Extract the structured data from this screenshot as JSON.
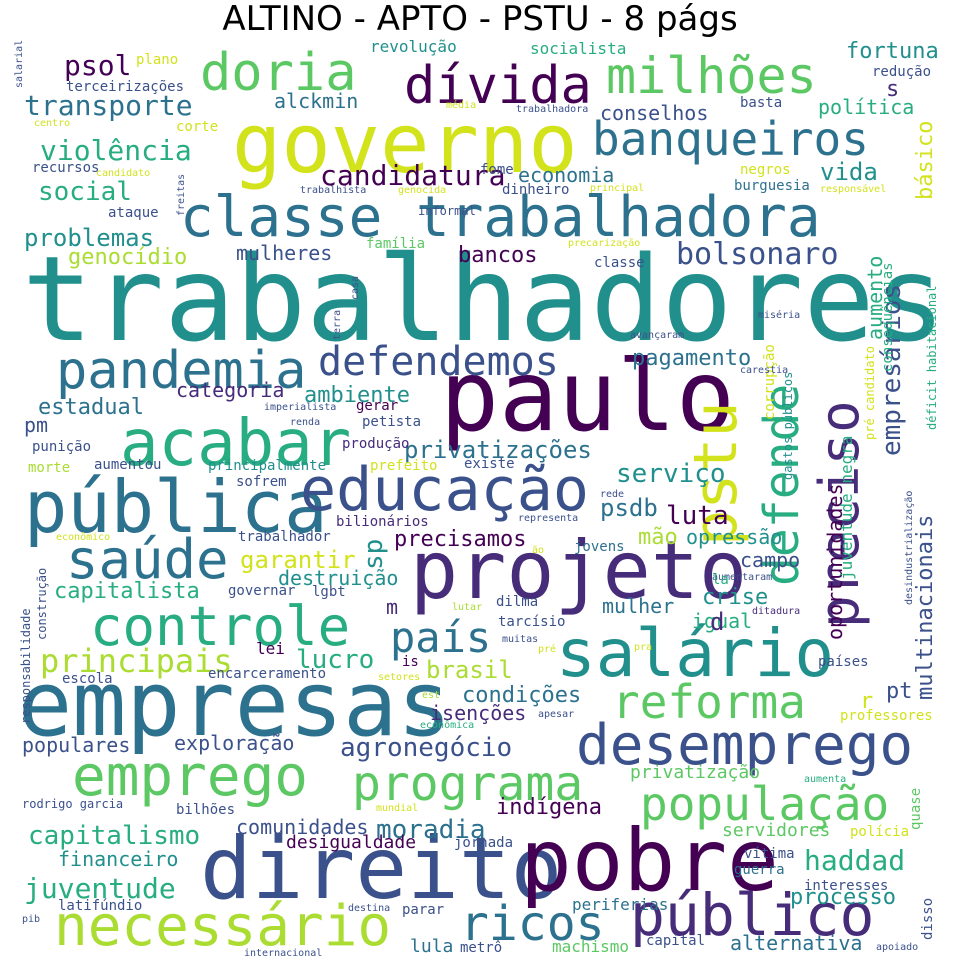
{
  "title": "ALTINO - APTO - PSTU - 8 págs",
  "colors": {
    "viridis": [
      "#440154",
      "#472c7a",
      "#3b518b",
      "#2c718e",
      "#21908d",
      "#27ad81",
      "#5cc863",
      "#aadc32",
      "#d2e21b"
    ]
  },
  "words": [
    {
      "text": "trabalhadores",
      "color": "#21908d"
    },
    {
      "text": "governo",
      "color": "#d2e21b"
    },
    {
      "text": "paulo",
      "color": "#440154"
    },
    {
      "text": "empresas",
      "color": "#2c718e"
    },
    {
      "text": "direito",
      "color": "#3b518b"
    },
    {
      "text": "pobre",
      "color": "#440154"
    },
    {
      "text": "projeto",
      "color": "#472c7a"
    },
    {
      "text": "classe trabalhadora",
      "color": "#2c718e"
    },
    {
      "text": "pública",
      "color": "#2c718e"
    },
    {
      "text": "educação",
      "color": "#3b518b"
    },
    {
      "text": "acabar",
      "color": "#27ad81"
    },
    {
      "text": "salário",
      "color": "#21908d"
    },
    {
      "text": "desemprego",
      "color": "#3b518b"
    },
    {
      "text": "emprego",
      "color": "#5cc863"
    },
    {
      "text": "necessário",
      "color": "#aadc32"
    },
    {
      "text": "público",
      "color": "#472c7a"
    },
    {
      "text": "controle",
      "color": "#27ad81"
    },
    {
      "text": "banqueiros",
      "color": "#2c718e"
    },
    {
      "text": "dívida",
      "color": "#440154"
    },
    {
      "text": "milhões",
      "color": "#5cc863"
    },
    {
      "text": "doria",
      "color": "#5cc863"
    },
    {
      "text": "preciso",
      "color": "#472c7a"
    },
    {
      "text": "pandemia",
      "color": "#2c718e"
    },
    {
      "text": "defendemos",
      "color": "#3b518b"
    },
    {
      "text": "saúde",
      "color": "#2c718e"
    },
    {
      "text": "pstu",
      "color": "#d2e21b"
    },
    {
      "text": "defende",
      "color": "#27ad81"
    },
    {
      "text": "programa",
      "color": "#5cc863"
    },
    {
      "text": "população",
      "color": "#5cc863"
    },
    {
      "text": "reforma",
      "color": "#5cc863"
    },
    {
      "text": "ricos",
      "color": "#2c718e"
    },
    {
      "text": "país",
      "color": "#2c718e"
    },
    {
      "text": "empresários",
      "color": "#3b518b"
    },
    {
      "text": "multinacionais",
      "color": "#3b518b"
    },
    {
      "text": "principais",
      "color": "#aadc32"
    },
    {
      "text": "capitalismo",
      "color": "#27ad81"
    },
    {
      "text": "juventude",
      "color": "#27ad81"
    },
    {
      "text": "violência",
      "color": "#27ad81"
    },
    {
      "text": "transporte",
      "color": "#2c718e"
    },
    {
      "text": "candidatura",
      "color": "#440154"
    },
    {
      "text": "bolsonaro",
      "color": "#3b518b"
    },
    {
      "text": "agronegócio",
      "color": "#3b518b"
    },
    {
      "text": "haddad",
      "color": "#27ad81"
    },
    {
      "text": "moradia",
      "color": "#2c718e"
    },
    {
      "text": "privatizações",
      "color": "#2c718e"
    },
    {
      "text": "social",
      "color": "#27ad81"
    },
    {
      "text": "problemas",
      "color": "#21908d"
    },
    {
      "text": "psol",
      "color": "#440154"
    },
    {
      "text": "fortuna",
      "color": "#21908d"
    },
    {
      "text": "política",
      "color": "#27ad81"
    },
    {
      "text": "conselhos",
      "color": "#3b518b"
    },
    {
      "text": "vida",
      "color": "#21908d"
    },
    {
      "text": "básico",
      "color": "#d2e21b"
    },
    {
      "text": "economia",
      "color": "#2c718e"
    },
    {
      "text": "bancos",
      "color": "#440154"
    },
    {
      "text": "pagamento",
      "color": "#2c718e"
    },
    {
      "text": "aumento",
      "color": "#27ad81"
    },
    {
      "text": "serviço",
      "color": "#21908d"
    },
    {
      "text": "luta",
      "color": "#440154"
    },
    {
      "text": "psdb",
      "color": "#2c718e"
    },
    {
      "text": "precisamos",
      "color": "#440154"
    },
    {
      "text": "sp",
      "color": "#21908d"
    },
    {
      "text": "garantir",
      "color": "#d2e21b"
    },
    {
      "text": "capitalista",
      "color": "#27ad81"
    },
    {
      "text": "lucro",
      "color": "#27ad81"
    },
    {
      "text": "brasil",
      "color": "#aadc32"
    },
    {
      "text": "condições",
      "color": "#2c718e"
    },
    {
      "text": "crise",
      "color": "#21908d"
    },
    {
      "text": "pt",
      "color": "#3b518b"
    },
    {
      "text": "genocídio",
      "color": "#aadc32"
    },
    {
      "text": "estadual",
      "color": "#2c718e"
    },
    {
      "text": "ambiente",
      "color": "#21908d"
    },
    {
      "text": "categoria",
      "color": "#472c7a"
    },
    {
      "text": "mulheres",
      "color": "#3b518b"
    },
    {
      "text": "alckmin",
      "color": "#2c718e"
    },
    {
      "text": "exploração",
      "color": "#3b518b"
    },
    {
      "text": "populares",
      "color": "#3b518b"
    },
    {
      "text": "comunidades",
      "color": "#3b518b"
    },
    {
      "text": "indígena",
      "color": "#440154"
    },
    {
      "text": "financeiro",
      "color": "#21908d"
    },
    {
      "text": "processo",
      "color": "#21908d"
    },
    {
      "text": "destruição",
      "color": "#21908d"
    },
    {
      "text": "isenções",
      "color": "#472c7a"
    },
    {
      "text": "oportunidades",
      "color": "#440154"
    },
    {
      "text": "desigualdade",
      "color": "#440154"
    },
    {
      "text": "opressão",
      "color": "#21908d"
    },
    {
      "text": "mão",
      "color": "#aadc32"
    },
    {
      "text": "campo",
      "color": "#3b518b"
    },
    {
      "text": "mulher",
      "color": "#2c718e"
    },
    {
      "text": "igual",
      "color": "#27ad81"
    },
    {
      "text": "privatização",
      "color": "#5cc863"
    },
    {
      "text": "servidores",
      "color": "#5cc863"
    },
    {
      "text": "lula",
      "color": "#2c718e"
    },
    {
      "text": "alternativa",
      "color": "#2c718e"
    },
    {
      "text": "periferias",
      "color": "#2c718e"
    },
    {
      "text": "machismo",
      "color": "#5cc863"
    },
    {
      "text": "revolução",
      "color": "#21908d"
    },
    {
      "text": "socialista",
      "color": "#27ad81"
    },
    {
      "text": "redução",
      "color": "#3b518b"
    },
    {
      "text": "terceirizações",
      "color": "#3b518b"
    },
    {
      "text": "plano",
      "color": "#d2e21b"
    },
    {
      "text": "basta",
      "color": "#3b518b"
    },
    {
      "text": "corte",
      "color": "#d2e21b"
    },
    {
      "text": "recursos",
      "color": "#3b518b"
    },
    {
      "text": "fome",
      "color": "#3b518b"
    },
    {
      "text": "dinheiro",
      "color": "#3b518b"
    },
    {
      "text": "negros",
      "color": "#d2e21b"
    },
    {
      "text": "burguesia",
      "color": "#2c718e"
    },
    {
      "text": "ataque",
      "color": "#3b518b"
    },
    {
      "text": "informal",
      "color": "#3b518b"
    },
    {
      "text": "família",
      "color": "#5cc863"
    },
    {
      "text": "classe",
      "color": "#3b518b"
    },
    {
      "text": "jovens",
      "color": "#2c718e"
    },
    {
      "text": "governar",
      "color": "#3b518b"
    },
    {
      "text": "lgbt",
      "color": "#3b518b"
    },
    {
      "text": "dilma",
      "color": "#3b518b"
    },
    {
      "text": "tarcísio",
      "color": "#3b518b"
    },
    {
      "text": "escola",
      "color": "#3b518b"
    },
    {
      "text": "encarceramento",
      "color": "#3b518b"
    },
    {
      "text": "lei",
      "color": "#440154"
    },
    {
      "text": "punição",
      "color": "#3b518b"
    },
    {
      "text": "aumentou",
      "color": "#3b518b"
    },
    {
      "text": "principalmente",
      "color": "#21908d"
    },
    {
      "text": "prefeito",
      "color": "#d2e21b"
    },
    {
      "text": "existe",
      "color": "#3b518b"
    },
    {
      "text": "produção",
      "color": "#472c7a"
    },
    {
      "text": "bilionários",
      "color": "#472c7a"
    },
    {
      "text": "trabalhador",
      "color": "#3b518b"
    },
    {
      "text": "sofrem",
      "color": "#3b518b"
    },
    {
      "text": "morte",
      "color": "#aadc32"
    },
    {
      "text": "pm",
      "color": "#3b518b"
    },
    {
      "text": "gerar",
      "color": "#440154"
    },
    {
      "text": "petista",
      "color": "#3b518b"
    },
    {
      "text": "rodrigo garcia",
      "color": "#3b518b"
    },
    {
      "text": "bilhões",
      "color": "#3b518b"
    },
    {
      "text": "jornada",
      "color": "#3b518b"
    },
    {
      "text": "vítima",
      "color": "#3b518b"
    },
    {
      "text": "guerra",
      "color": "#2c718e"
    },
    {
      "text": "interesses",
      "color": "#3b518b"
    },
    {
      "text": "latifúndio",
      "color": "#3b518b"
    },
    {
      "text": "parar",
      "color": "#3b518b"
    },
    {
      "text": "metrô",
      "color": "#3b518b"
    },
    {
      "text": "capital",
      "color": "#3b518b"
    },
    {
      "text": "disso",
      "color": "#3b518b"
    },
    {
      "text": "países",
      "color": "#3b518b"
    },
    {
      "text": "professores",
      "color": "#d2e21b"
    },
    {
      "text": "polícia",
      "color": "#d2e21b"
    },
    {
      "text": "quase",
      "color": "#5cc863"
    },
    {
      "text": "juventude negra",
      "color": "#27ad81"
    },
    {
      "text": "consequências",
      "color": "#27ad81"
    },
    {
      "text": "déficit habitacional",
      "color": "#27ad81"
    },
    {
      "text": "pré candidato",
      "color": "#d2e21b"
    },
    {
      "text": "gastos públicos",
      "color": "#21908d"
    },
    {
      "text": "corrupção",
      "color": "#d2e21b"
    },
    {
      "text": "responsabilidade",
      "color": "#3b518b"
    },
    {
      "text": "construção",
      "color": "#3b518b"
    },
    {
      "text": "salarial",
      "color": "#3b518b"
    },
    {
      "text": "freitas",
      "color": "#3b518b"
    },
    {
      "text": "casa",
      "color": "#3b518b"
    },
    {
      "text": "terra",
      "color": "#3b518b"
    },
    {
      "text": "desindustrialização",
      "color": "#3b518b"
    },
    {
      "text": "miséria",
      "color": "#3b518b"
    },
    {
      "text": "avançaram",
      "color": "#3b518b"
    },
    {
      "text": "carestia",
      "color": "#3b518b"
    },
    {
      "text": "imperialista",
      "color": "#3b518b"
    },
    {
      "text": "renda",
      "color": "#3b518b"
    },
    {
      "text": "rede",
      "color": "#3b518b"
    },
    {
      "text": "representa",
      "color": "#3b518b"
    },
    {
      "text": "aumentaram",
      "color": "#3b518b"
    },
    {
      "text": "ditadura",
      "color": "#472c7a"
    },
    {
      "text": "m",
      "color": "#472c7a"
    },
    {
      "text": "d",
      "color": "#472c7a"
    },
    {
      "text": "s",
      "color": "#472c7a"
    },
    {
      "text": "r",
      "color": "#d2e21b"
    },
    {
      "text": "la",
      "color": "#27ad81"
    },
    {
      "text": "is",
      "color": "#440154"
    },
    {
      "text": "muitas",
      "color": "#3b518b"
    },
    {
      "text": "lutar",
      "color": "#aadc32"
    },
    {
      "text": "pré",
      "color": "#d2e21b"
    },
    {
      "text": "pra",
      "color": "#d2e21b"
    },
    {
      "text": "setores",
      "color": "#d2e21b"
    },
    {
      "text": "est",
      "color": "#aadc32"
    },
    {
      "text": "apesar",
      "color": "#3b518b"
    },
    {
      "text": "econômica",
      "color": "#27ad81"
    },
    {
      "text": "aumenta",
      "color": "#27ad81"
    },
    {
      "text": "mundial",
      "color": "#d2e21b"
    },
    {
      "text": "destina",
      "color": "#3b518b"
    },
    {
      "text": "internacional",
      "color": "#3b518b"
    },
    {
      "text": "pib",
      "color": "#3b518b"
    },
    {
      "text": "apoiado",
      "color": "#3b518b"
    },
    {
      "text": "média",
      "color": "#d2e21b"
    },
    {
      "text": "trabalhadora",
      "color": "#3b518b"
    },
    {
      "text": "centro",
      "color": "#d2e21b"
    },
    {
      "text": "candidato",
      "color": "#d2e21b"
    },
    {
      "text": "trabalhista",
      "color": "#3b518b"
    },
    {
      "text": "genocida",
      "color": "#d2e21b"
    },
    {
      "text": "principal",
      "color": "#d2e21b"
    },
    {
      "text": "responsável",
      "color": "#d2e21b"
    },
    {
      "text": "precarização",
      "color": "#d2e21b"
    },
    {
      "text": "econômico",
      "color": "#d2e21b"
    },
    {
      "text": "ão",
      "color": "#d2e21b"
    }
  ]
}
